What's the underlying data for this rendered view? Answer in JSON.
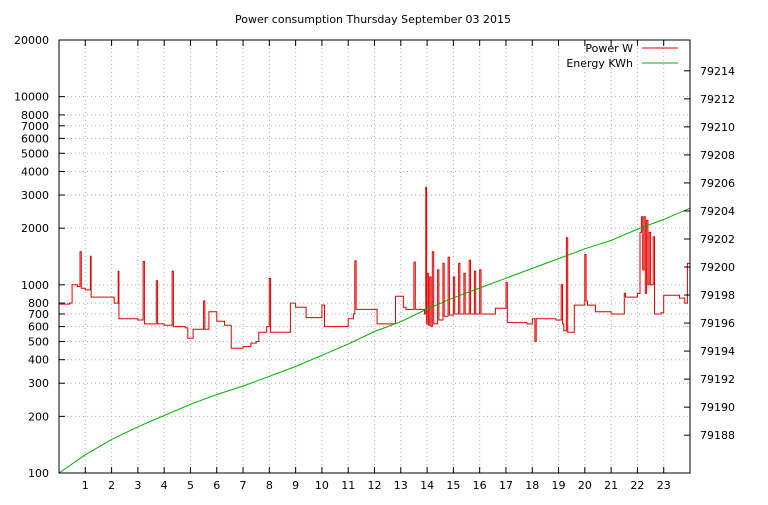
{
  "chart_data": {
    "type": "line",
    "title": "Power consumption Thursday September 03 2015",
    "x": {
      "min": 0,
      "max": 24,
      "ticks": [
        1,
        2,
        3,
        4,
        5,
        6,
        7,
        8,
        9,
        10,
        11,
        12,
        13,
        14,
        15,
        16,
        17,
        18,
        19,
        20,
        21,
        22,
        23
      ]
    },
    "y_left": {
      "scale": "log",
      "min": 100,
      "max": 20000,
      "ticks": [
        100,
        200,
        300,
        400,
        500,
        600,
        700,
        800,
        1000,
        2000,
        3000,
        4000,
        5000,
        6000,
        7000,
        8000,
        10000,
        20000
      ],
      "tick_labels": [
        "100",
        "200",
        "300",
        "400",
        "500",
        "600",
        "700",
        "800",
        "1000",
        "2000",
        "3000",
        "4000",
        "5000",
        "6000",
        "7000",
        "8000",
        "10000",
        "20000"
      ]
    },
    "y_right": {
      "scale": "linear",
      "min": 79185.3,
      "max": 79216.2,
      "ticks": [
        79188,
        79190,
        79192,
        79194,
        79196,
        79198,
        79200,
        79202,
        79204,
        79206,
        79208,
        79210,
        79212,
        79214
      ]
    },
    "grid": true,
    "legend_position": "top-right",
    "series": [
      {
        "name": "Power W",
        "axis": "left",
        "color": "#e00000",
        "style": "step",
        "points": [
          [
            0.0,
            790
          ],
          [
            0.4,
            800
          ],
          [
            0.5,
            1000
          ],
          [
            0.7,
            980
          ],
          [
            0.8,
            1500
          ],
          [
            0.85,
            960
          ],
          [
            1.0,
            940
          ],
          [
            1.2,
            1420
          ],
          [
            1.22,
            860
          ],
          [
            1.8,
            860
          ],
          [
            2.1,
            800
          ],
          [
            2.25,
            1180
          ],
          [
            2.28,
            660
          ],
          [
            3.0,
            650
          ],
          [
            3.2,
            1330
          ],
          [
            3.25,
            620
          ],
          [
            3.5,
            620
          ],
          [
            3.7,
            1050
          ],
          [
            3.75,
            620
          ],
          [
            4.0,
            610
          ],
          [
            4.3,
            1180
          ],
          [
            4.35,
            600
          ],
          [
            4.8,
            590
          ],
          [
            4.9,
            520
          ],
          [
            5.1,
            580
          ],
          [
            5.5,
            820
          ],
          [
            5.55,
            580
          ],
          [
            5.7,
            720
          ],
          [
            6.0,
            640
          ],
          [
            6.3,
            610
          ],
          [
            6.55,
            460
          ],
          [
            6.6,
            460
          ],
          [
            7.0,
            470
          ],
          [
            7.3,
            490
          ],
          [
            7.5,
            500
          ],
          [
            7.6,
            560
          ],
          [
            7.9,
            600
          ],
          [
            8.0,
            1080
          ],
          [
            8.05,
            560
          ],
          [
            8.5,
            560
          ],
          [
            8.8,
            800
          ],
          [
            9.0,
            760
          ],
          [
            9.4,
            670
          ],
          [
            9.8,
            670
          ],
          [
            10.0,
            780
          ],
          [
            10.1,
            600
          ],
          [
            10.7,
            600
          ],
          [
            11.0,
            660
          ],
          [
            11.2,
            700
          ],
          [
            11.25,
            1340
          ],
          [
            11.3,
            740
          ],
          [
            11.8,
            740
          ],
          [
            12.1,
            620
          ],
          [
            12.4,
            620
          ],
          [
            12.8,
            870
          ],
          [
            13.1,
            760
          ],
          [
            13.2,
            740
          ],
          [
            13.5,
            1320
          ],
          [
            13.55,
            740
          ],
          [
            13.9,
            700
          ],
          [
            13.95,
            3300
          ],
          [
            13.98,
            620
          ],
          [
            14.0,
            1150
          ],
          [
            14.05,
            610
          ],
          [
            14.1,
            1100
          ],
          [
            14.15,
            600
          ],
          [
            14.2,
            1500
          ],
          [
            14.25,
            620
          ],
          [
            14.4,
            1200
          ],
          [
            14.45,
            650
          ],
          [
            14.6,
            1300
          ],
          [
            14.65,
            680
          ],
          [
            14.8,
            1400
          ],
          [
            14.85,
            690
          ],
          [
            15.0,
            1100
          ],
          [
            15.05,
            700
          ],
          [
            15.2,
            1300
          ],
          [
            15.25,
            700
          ],
          [
            15.4,
            1150
          ],
          [
            15.45,
            700
          ],
          [
            15.6,
            1350
          ],
          [
            15.65,
            700
          ],
          [
            15.8,
            1180
          ],
          [
            15.85,
            700
          ],
          [
            16.0,
            1200
          ],
          [
            16.05,
            700
          ],
          [
            16.3,
            700
          ],
          [
            16.6,
            750
          ],
          [
            16.9,
            750
          ],
          [
            17.0,
            1030
          ],
          [
            17.05,
            630
          ],
          [
            17.5,
            630
          ],
          [
            17.8,
            620
          ],
          [
            18.0,
            660
          ],
          [
            18.1,
            500
          ],
          [
            18.15,
            660
          ],
          [
            18.6,
            660
          ],
          [
            18.9,
            650
          ],
          [
            19.1,
            1000
          ],
          [
            19.15,
            620
          ],
          [
            19.2,
            570
          ],
          [
            19.3,
            1780
          ],
          [
            19.35,
            560
          ],
          [
            19.5,
            560
          ],
          [
            19.6,
            780
          ],
          [
            19.9,
            780
          ],
          [
            20.0,
            1450
          ],
          [
            20.05,
            820
          ],
          [
            20.1,
            780
          ],
          [
            20.4,
            720
          ],
          [
            20.8,
            720
          ],
          [
            21.0,
            700
          ],
          [
            21.5,
            900
          ],
          [
            21.55,
            860
          ],
          [
            22.0,
            900
          ],
          [
            22.1,
            1900
          ],
          [
            22.15,
            2300
          ],
          [
            22.2,
            1200
          ],
          [
            22.25,
            2300
          ],
          [
            22.3,
            900
          ],
          [
            22.35,
            2200
          ],
          [
            22.4,
            1000
          ],
          [
            22.45,
            1900
          ],
          [
            22.5,
            1000
          ],
          [
            22.6,
            1800
          ],
          [
            22.65,
            700
          ],
          [
            22.9,
            710
          ],
          [
            23.0,
            880
          ],
          [
            23.3,
            880
          ],
          [
            23.6,
            850
          ],
          [
            23.8,
            800
          ],
          [
            23.9,
            1300
          ],
          [
            24.0,
            800
          ]
        ]
      },
      {
        "name": "Energy KWh",
        "axis": "right",
        "color": "#00b000",
        "style": "line",
        "points": [
          [
            0.0,
            79185.3
          ],
          [
            1.0,
            79186.6
          ],
          [
            2.0,
            79187.7
          ],
          [
            3.0,
            79188.6
          ],
          [
            4.0,
            79189.4
          ],
          [
            5.0,
            79190.2
          ],
          [
            6.0,
            79190.9
          ],
          [
            7.0,
            79191.5
          ],
          [
            8.0,
            79192.2
          ],
          [
            9.0,
            79192.9
          ],
          [
            10.0,
            79193.7
          ],
          [
            11.0,
            79194.5
          ],
          [
            12.0,
            79195.4
          ],
          [
            13.0,
            79196.1
          ],
          [
            14.0,
            79197.0
          ],
          [
            15.0,
            79197.8
          ],
          [
            16.0,
            79198.5
          ],
          [
            17.0,
            79199.2
          ],
          [
            18.0,
            79199.9
          ],
          [
            19.0,
            79200.6
          ],
          [
            20.0,
            79201.3
          ],
          [
            21.0,
            79201.9
          ],
          [
            22.0,
            79202.7
          ],
          [
            23.0,
            79203.4
          ],
          [
            24.0,
            79204.2
          ]
        ]
      }
    ]
  }
}
